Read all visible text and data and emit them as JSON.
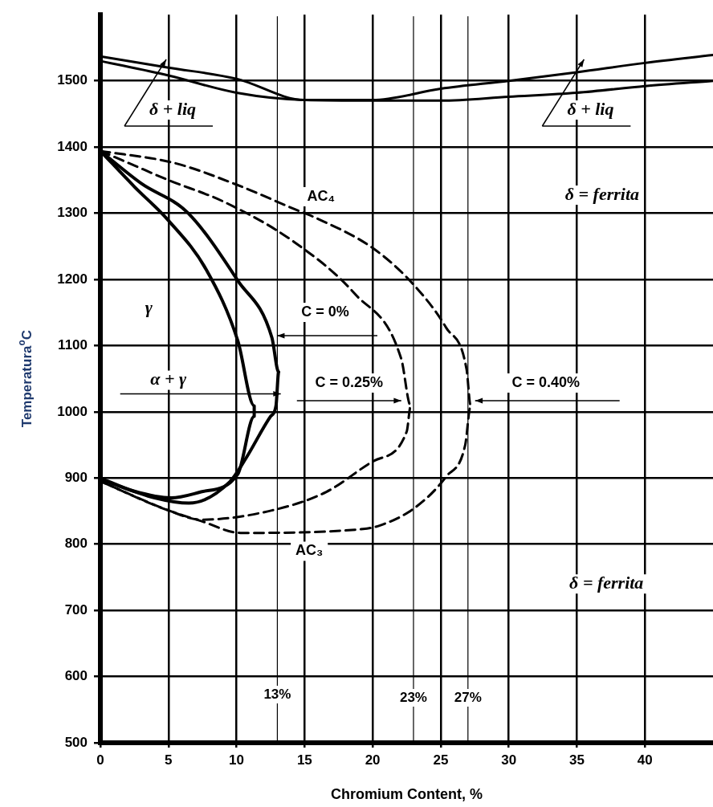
{
  "chart_data": {
    "type": "line",
    "xlabel": "Chromium Content, %",
    "ylabel": "Temperatura$^{o}$C",
    "xlim": [
      0,
      45
    ],
    "xticks": [
      0,
      5,
      10,
      15,
      20,
      25,
      30,
      35,
      40
    ],
    "ylim": [
      500,
      1600
    ],
    "yticks": [
      500,
      600,
      700,
      800,
      900,
      1000,
      1100,
      1200,
      1300,
      1400,
      1500
    ],
    "grid": true,
    "legend": false,
    "marker": "none",
    "series": [
      {
        "color": "#000000",
        "line_style": "solid",
        "x": [
          0,
          5,
          10,
          15,
          20,
          25,
          30,
          35,
          40,
          45
        ],
        "values": [
          1537,
          1520,
          1503,
          1471,
          1471,
          1488,
          1500,
          1513,
          1527,
          1539
        ]
      },
      {
        "color": "#000000",
        "line_style": "solid",
        "x": [
          0,
          5,
          10,
          15,
          20,
          25,
          30,
          35,
          40,
          45
        ],
        "values": [
          1530,
          1508,
          1482,
          1471,
          1470,
          1470,
          1476,
          1482,
          1492,
          1500
        ]
      },
      {
        "color": "#000000",
        "line_style": "solid",
        "x": [
          0,
          2.5,
          5,
          7.8,
          10.1,
          11.3,
          11.3,
          10.1,
          7.4,
          5.2,
          2.5,
          0
        ],
        "values": [
          1394,
          1340,
          1289,
          1214,
          1107,
          1009,
          993,
          906,
          879,
          870,
          880,
          900
        ]
      },
      {
        "color": "#000000",
        "line_style": "solid",
        "x": [
          0,
          3,
          6.4,
          10.1,
          12.6,
          13.1,
          12.9,
          12.5,
          10.7,
          9.5,
          6.5,
          4,
          0
        ],
        "values": [
          1394,
          1345,
          1301,
          1198,
          1112,
          1060,
          1009,
          993,
          930,
          894,
          862,
          870,
          898
        ]
      },
      {
        "color": "#000000",
        "line_style": "dashed",
        "x": [
          0,
          2.5,
          5,
          9.1,
          14.2,
          18.7,
          22.1,
          22.8,
          22.5,
          20.1,
          16.6,
          12.6,
          7.4,
          5,
          0
        ],
        "values": [
          1394,
          1372,
          1350,
          1317,
          1257,
          1178,
          1080,
          1009,
          970,
          926,
          879,
          851,
          837,
          851,
          895
        ]
      },
      {
        "color": "#000000",
        "line_style": "dashed",
        "x": [
          0,
          5.4,
          9.9,
          14.4,
          15.6,
          20.1,
          23.1,
          25.4,
          26.9,
          27.2,
          26.8,
          25.4,
          23.1,
          20.5,
          19.3,
          10.3,
          7.4,
          5,
          0
        ],
        "values": [
          1394,
          1376,
          1344,
          1305,
          1295,
          1246,
          1190,
          1127,
          1064,
          1009,
          950,
          902,
          855,
          828,
          823,
          817,
          835,
          851,
          895
        ]
      }
    ],
    "ref_lines": [
      {
        "axis": "x",
        "value": 13,
        "label": "13%"
      },
      {
        "axis": "x",
        "value": 23,
        "label": "23%"
      },
      {
        "axis": "x",
        "value": 27,
        "label": "27%"
      }
    ],
    "annotations": [
      "δ + liq",
      "δ + liq",
      "δ = ferrita",
      "δ = ferrita",
      "AC₄",
      "AC₃",
      "γ",
      "α + γ",
      "C = 0%",
      "C = 0.25%",
      "C = 0.40%"
    ]
  }
}
